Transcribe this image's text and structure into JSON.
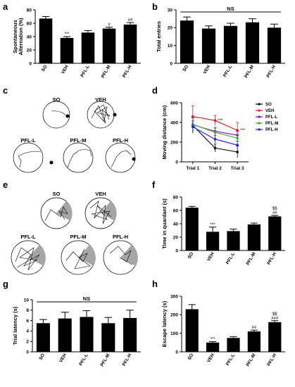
{
  "panel_labels": {
    "a": "a",
    "b": "b",
    "c": "c",
    "d": "d",
    "e": "e",
    "f": "f",
    "g": "g",
    "h": "h"
  },
  "colors": {
    "bar": "#000000",
    "SO": "#000000",
    "VEH": "#e41a1c",
    "PFL-L": "#9900cc",
    "PFL-M": "#33aa33",
    "PFL-H": "#1a1aff",
    "quadrant": "#a6a6a6"
  },
  "traces_c": {
    "circles": [
      "SO",
      "VEH",
      "PFL-L",
      "PFL-M",
      "PFL-H"
    ]
  },
  "traces_e": {
    "circles": [
      "SO",
      "VEH",
      "PFL-L",
      "PFL-M",
      "PFL-H"
    ]
  },
  "chart_data": [
    {
      "id": "a",
      "type": "bar",
      "categories": [
        "SO",
        "VEH",
        "PFL-L",
        "PFL-M",
        "PFL-H"
      ],
      "values": [
        67,
        38,
        46,
        52,
        58
      ],
      "errors": [
        3,
        2,
        3,
        2,
        3
      ],
      "ylabel_lines": [
        "Spontaneous",
        "Alternation (%)"
      ],
      "ylim": [
        0,
        80
      ],
      "yticks": [
        "0",
        "20",
        "40",
        "60",
        "80"
      ],
      "annotations": [
        "",
        "***",
        "",
        "#",
        "##"
      ]
    },
    {
      "id": "b",
      "type": "bar",
      "categories": [
        "SO",
        "VEH",
        "PFL-L",
        "PFL-M",
        "PFL-H"
      ],
      "values": [
        24,
        19.5,
        21,
        23,
        20
      ],
      "errors": [
        2,
        1.5,
        1.5,
        2,
        2
      ],
      "ylabel": "Total entries",
      "ylim": [
        0,
        30
      ],
      "yticks": [
        "0",
        "10",
        "20",
        "30"
      ],
      "bracket_label": "NS"
    },
    {
      "id": "d",
      "type": "line",
      "x": [
        "Trial 1",
        "Trial 2",
        "Trial 3"
      ],
      "ylabel": "Moving distance (cm)",
      "ylim": [
        0,
        600
      ],
      "yticks": [
        "0",
        "200",
        "400",
        "600"
      ],
      "series": [
        {
          "name": "SO",
          "values": [
            370,
            140,
            100
          ],
          "errors": [
            80,
            40,
            60
          ]
        },
        {
          "name": "VEH",
          "values": [
            460,
            420,
            320
          ],
          "errors": [
            110,
            50,
            80
          ]
        },
        {
          "name": "PFL-L",
          "values": [
            375,
            310,
            270
          ],
          "errors": [
            70,
            40,
            40
          ]
        },
        {
          "name": "PFL-M",
          "values": [
            380,
            300,
            240
          ],
          "errors": [
            70,
            40,
            40
          ]
        },
        {
          "name": "PFL-H",
          "values": [
            355,
            230,
            170
          ],
          "errors": [
            60,
            40,
            40
          ]
        }
      ],
      "annotations": [
        {
          "x": "Trial 2",
          "text": "***"
        },
        {
          "x": "Trial 3",
          "text": "***"
        }
      ]
    },
    {
      "id": "f",
      "type": "bar",
      "categories": [
        "SO",
        "VEH",
        "PFL-L",
        "PFL-M",
        "PFL-H"
      ],
      "values": [
        64,
        28,
        29,
        39,
        51
      ],
      "errors": [
        2,
        7,
        3,
        2,
        1.5
      ],
      "ylabel": "Time in quardant (s)",
      "ylim": [
        0,
        80
      ],
      "yticks": [
        "0",
        "20",
        "40",
        "60",
        "80"
      ],
      "annotations": [
        "",
        "***",
        "",
        "",
        "$$\n##"
      ]
    },
    {
      "id": "g",
      "type": "bar",
      "categories": [
        "SO",
        "VEH",
        "PFL-L",
        "PFL-M",
        "PFL-H"
      ],
      "values": [
        5.5,
        6.4,
        6.7,
        5.5,
        6.5
      ],
      "errors": [
        0.7,
        1.2,
        1.2,
        1.1,
        1.5
      ],
      "ylabel": "Trial latency (s)",
      "ylim": [
        0,
        10
      ],
      "yticks": [
        "0",
        "2",
        "4",
        "6",
        "8",
        "10"
      ],
      "bracket_label": "NS"
    },
    {
      "id": "h",
      "type": "bar",
      "categories": [
        "SO",
        "VEH",
        "PFL-L",
        "PFL-M",
        "PFL-H"
      ],
      "values": [
        230,
        50,
        75,
        110,
        160
      ],
      "errors": [
        25,
        5,
        7,
        7,
        8
      ],
      "ylabel": "Escape latency (s)",
      "ylim": [
        0,
        300
      ],
      "yticks": [
        "0",
        "100",
        "200",
        "300"
      ],
      "annotations": [
        "",
        "***",
        "",
        "##",
        "$$\n###"
      ]
    }
  ]
}
